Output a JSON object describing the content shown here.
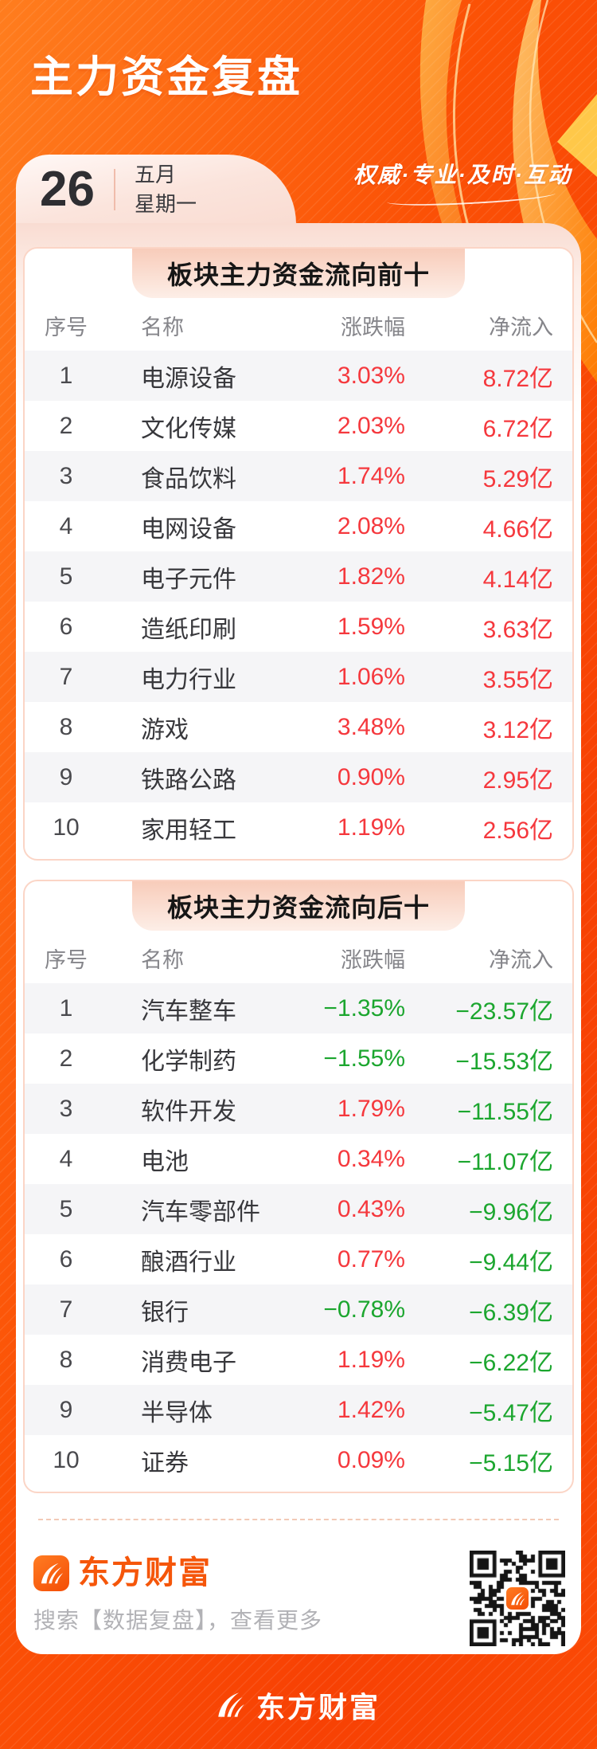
{
  "colors": {
    "up": "#f5383d",
    "down": "#1ca62f",
    "brand_orange": "#f5560a"
  },
  "header": {
    "title": "主力资金复盘",
    "slogan": "权威·专业·及时·互动",
    "date": {
      "day": "26",
      "month": "五月",
      "weekday": "星期一"
    }
  },
  "tables": [
    {
      "title": "板块主力资金流向前十",
      "columns": [
        "序号",
        "名称",
        "涨跌幅",
        "净流入"
      ],
      "rows": [
        {
          "rank": "1",
          "name": "电源设备",
          "change": "3.03%",
          "change_dir": "up",
          "net": "8.72亿",
          "net_dir": "up"
        },
        {
          "rank": "2",
          "name": "文化传媒",
          "change": "2.03%",
          "change_dir": "up",
          "net": "6.72亿",
          "net_dir": "up"
        },
        {
          "rank": "3",
          "name": "食品饮料",
          "change": "1.74%",
          "change_dir": "up",
          "net": "5.29亿",
          "net_dir": "up"
        },
        {
          "rank": "4",
          "name": "电网设备",
          "change": "2.08%",
          "change_dir": "up",
          "net": "4.66亿",
          "net_dir": "up"
        },
        {
          "rank": "5",
          "name": "电子元件",
          "change": "1.82%",
          "change_dir": "up",
          "net": "4.14亿",
          "net_dir": "up"
        },
        {
          "rank": "6",
          "name": "造纸印刷",
          "change": "1.59%",
          "change_dir": "up",
          "net": "3.63亿",
          "net_dir": "up"
        },
        {
          "rank": "7",
          "name": "电力行业",
          "change": "1.06%",
          "change_dir": "up",
          "net": "3.55亿",
          "net_dir": "up"
        },
        {
          "rank": "8",
          "name": "游戏",
          "change": "3.48%",
          "change_dir": "up",
          "net": "3.12亿",
          "net_dir": "up"
        },
        {
          "rank": "9",
          "name": "铁路公路",
          "change": "0.90%",
          "change_dir": "up",
          "net": "2.95亿",
          "net_dir": "up"
        },
        {
          "rank": "10",
          "name": "家用轻工",
          "change": "1.19%",
          "change_dir": "up",
          "net": "2.56亿",
          "net_dir": "up"
        }
      ]
    },
    {
      "title": "板块主力资金流向后十",
      "columns": [
        "序号",
        "名称",
        "涨跌幅",
        "净流入"
      ],
      "rows": [
        {
          "rank": "1",
          "name": "汽车整车",
          "change": "−1.35%",
          "change_dir": "down",
          "net": "−23.57亿",
          "net_dir": "down"
        },
        {
          "rank": "2",
          "name": "化学制药",
          "change": "−1.55%",
          "change_dir": "down",
          "net": "−15.53亿",
          "net_dir": "down"
        },
        {
          "rank": "3",
          "name": "软件开发",
          "change": "1.79%",
          "change_dir": "up",
          "net": "−11.55亿",
          "net_dir": "down"
        },
        {
          "rank": "4",
          "name": "电池",
          "change": "0.34%",
          "change_dir": "up",
          "net": "−11.07亿",
          "net_dir": "down"
        },
        {
          "rank": "5",
          "name": "汽车零部件",
          "change": "0.43%",
          "change_dir": "up",
          "net": "−9.96亿",
          "net_dir": "down"
        },
        {
          "rank": "6",
          "name": "酿酒行业",
          "change": "0.77%",
          "change_dir": "up",
          "net": "−9.44亿",
          "net_dir": "down"
        },
        {
          "rank": "7",
          "name": "银行",
          "change": "−0.78%",
          "change_dir": "down",
          "net": "−6.39亿",
          "net_dir": "down"
        },
        {
          "rank": "8",
          "name": "消费电子",
          "change": "1.19%",
          "change_dir": "up",
          "net": "−6.22亿",
          "net_dir": "down"
        },
        {
          "rank": "9",
          "name": "半导体",
          "change": "1.42%",
          "change_dir": "up",
          "net": "−5.47亿",
          "net_dir": "down"
        },
        {
          "rank": "10",
          "name": "证券",
          "change": "0.09%",
          "change_dir": "up",
          "net": "−5.15亿",
          "net_dir": "down"
        }
      ]
    }
  ],
  "footer": {
    "brand": "东方财富",
    "search_hint": "搜索【数据复盘】，查看更多"
  },
  "bottom_bar": {
    "brand": "东方财富"
  }
}
